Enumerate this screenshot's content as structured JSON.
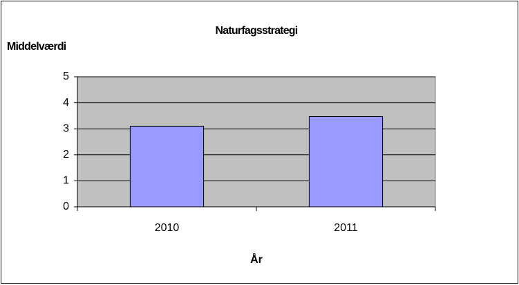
{
  "chart_data": {
    "type": "bar",
    "title": "Naturfagsstrategi",
    "y_label": "Middelværdi",
    "x_label": "År",
    "categories": [
      "2010",
      "2011"
    ],
    "values": [
      3.1,
      3.47
    ],
    "color": "#9999ff",
    "ylim": [
      0,
      5
    ],
    "yticks": [
      0,
      1,
      2,
      3,
      4,
      5
    ],
    "grid": true
  }
}
